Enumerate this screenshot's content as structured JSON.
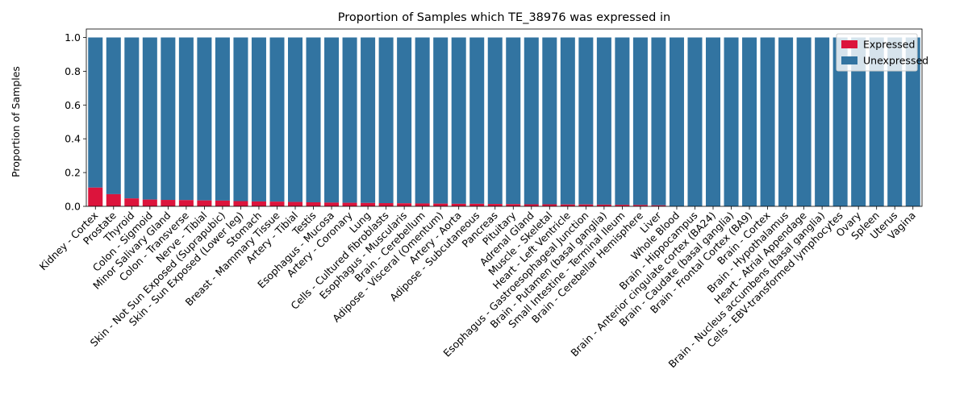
{
  "chart_data": {
    "type": "bar",
    "stacked": true,
    "title": "Proportion of Samples which TE_38976 was expressed in",
    "xlabel": "",
    "ylabel": "Proportion of Samples",
    "ylim": [
      0,
      1.05
    ],
    "yticks": [
      "0.0",
      "0.2",
      "0.4",
      "0.6",
      "0.8",
      "1.0"
    ],
    "legend_position": "top-right",
    "categories": [
      "Kidney - Cortex",
      "Prostate",
      "Thyroid",
      "Colon - Sigmoid",
      "Minor Salivary Gland",
      "Colon - Transverse",
      "Nerve - Tibial",
      "Skin - Not Sun Exposed (Suprapubic)",
      "Skin - Sun Exposed (Lower leg)",
      "Stomach",
      "Breast - Mammary Tissue",
      "Artery - Tibial",
      "Testis",
      "Esophagus - Mucosa",
      "Artery - Coronary",
      "Lung",
      "Cells - Cultured fibroblasts",
      "Esophagus - Muscularis",
      "Brain - Cerebellum",
      "Adipose - Visceral (Omentum)",
      "Artery - Aorta",
      "Adipose - Subcutaneous",
      "Pancreas",
      "Pituitary",
      "Adrenal Gland",
      "Muscle - Skeletal",
      "Heart - Left Ventricle",
      "Esophagus - Gastroesophageal Junction",
      "Brain - Putamen (basal ganglia)",
      "Small Intestine - Terminal Ileum",
      "Brain - Cerebellar Hemisphere",
      "Liver",
      "Whole Blood",
      "Brain - Hippocampus",
      "Brain - Anterior cingulate cortex (BA24)",
      "Brain - Caudate (basal ganglia)",
      "Brain - Frontal Cortex (BA9)",
      "Brain - Cortex",
      "Brain - Hypothalamus",
      "Heart - Atrial Appendage",
      "Brain - Nucleus accumbens (basal ganglia)",
      "Cells - EBV-transformed lymphocytes",
      "Ovary",
      "Spleen",
      "Uterus",
      "Vagina"
    ],
    "series": [
      {
        "name": "Expressed",
        "color": "#dc143c",
        "values": [
          0.111,
          0.072,
          0.047,
          0.04,
          0.038,
          0.037,
          0.035,
          0.034,
          0.031,
          0.029,
          0.028,
          0.026,
          0.024,
          0.022,
          0.021,
          0.02,
          0.019,
          0.018,
          0.017,
          0.016,
          0.015,
          0.015,
          0.014,
          0.013,
          0.012,
          0.012,
          0.011,
          0.011,
          0.01,
          0.009,
          0.008,
          0.006,
          0.0,
          0.0,
          0.0,
          0.0,
          0.0,
          0.0,
          0.0,
          0.0,
          0.0,
          0.0,
          0.0,
          0.0,
          0.0,
          0.0
        ]
      },
      {
        "name": "Unexpressed",
        "color": "#3274a1",
        "values": [
          0.889,
          0.928,
          0.953,
          0.96,
          0.962,
          0.963,
          0.965,
          0.966,
          0.969,
          0.971,
          0.972,
          0.974,
          0.976,
          0.978,
          0.979,
          0.98,
          0.981,
          0.982,
          0.983,
          0.984,
          0.985,
          0.985,
          0.986,
          0.987,
          0.988,
          0.988,
          0.989,
          0.989,
          0.99,
          0.991,
          0.992,
          0.994,
          1.0,
          1.0,
          1.0,
          1.0,
          1.0,
          1.0,
          1.0,
          1.0,
          1.0,
          1.0,
          1.0,
          1.0,
          1.0,
          1.0
        ]
      }
    ]
  }
}
